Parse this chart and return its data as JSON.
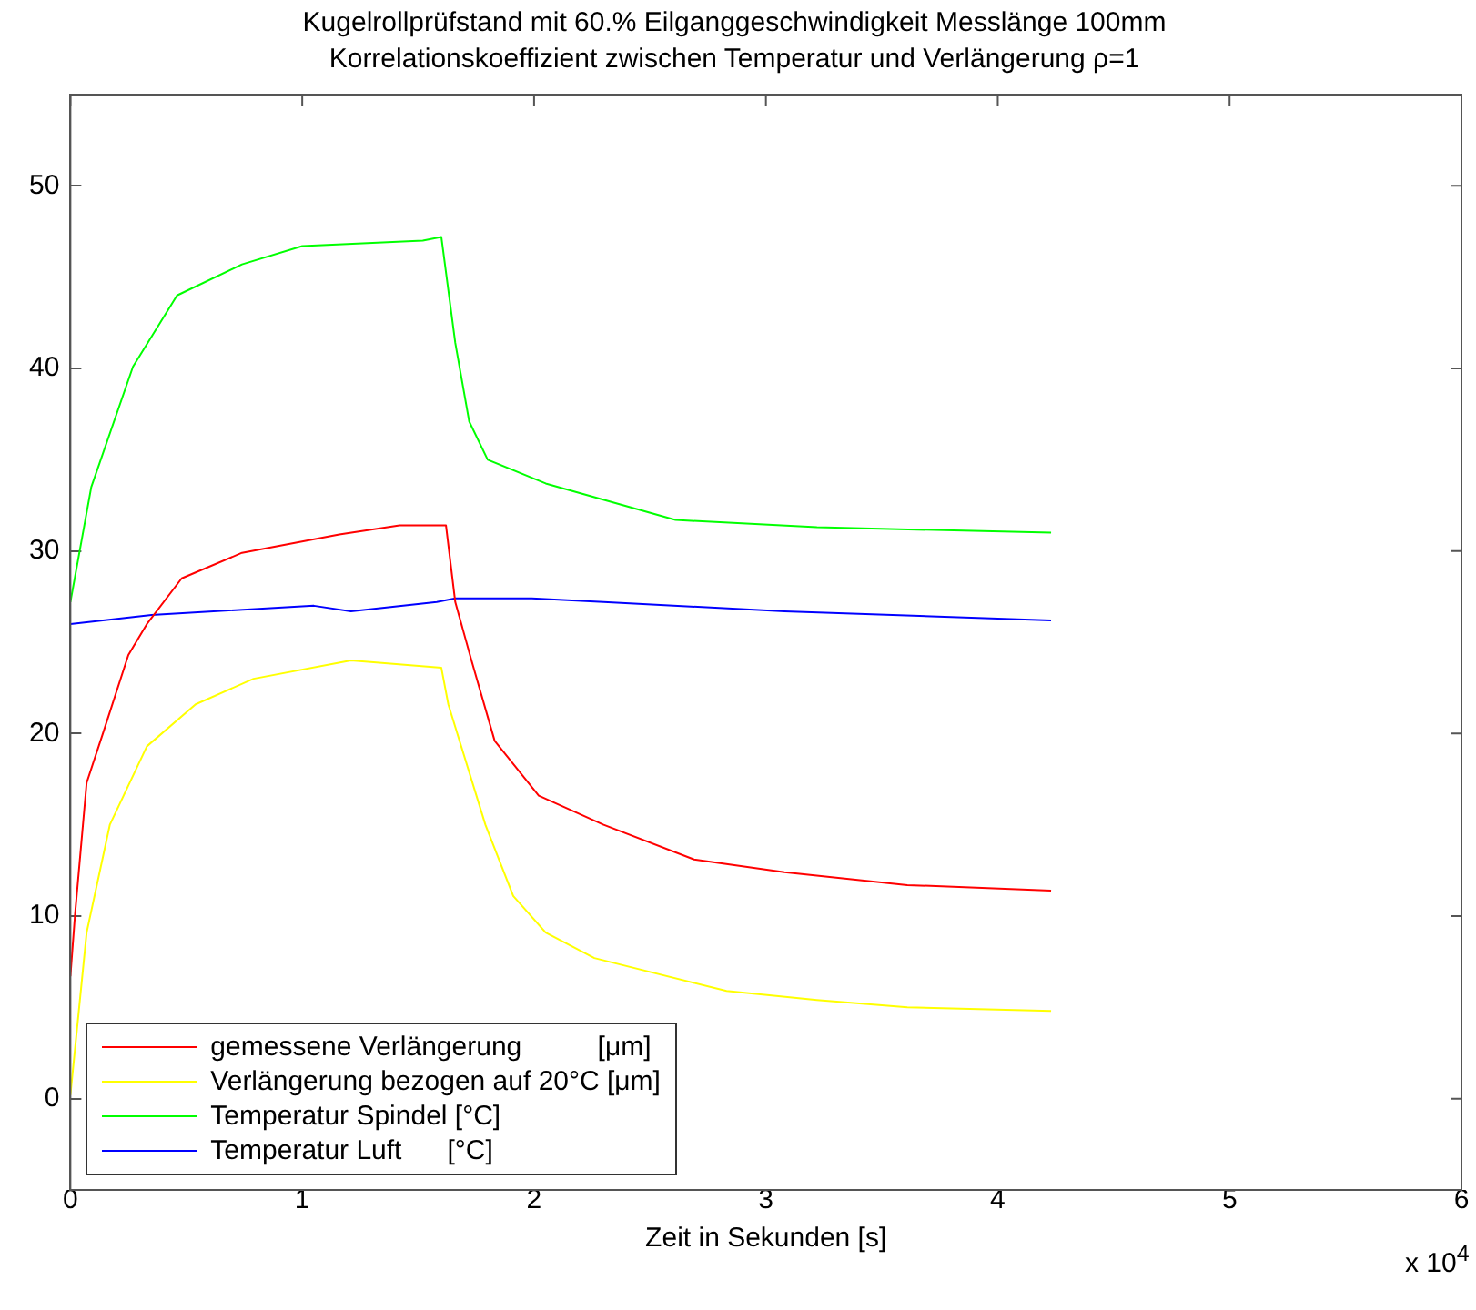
{
  "chart_data": {
    "type": "line",
    "title": "Kugelrollprüfstand mit 60.% Eilganggeschwindigkeit Messlänge 100mm",
    "subtitle": "Korrelationskoeffizient zwischen Temperatur und Verlängerung ρ=1",
    "xlabel": "Zeit in Sekunden [s]",
    "annotations": [
      "x 10$^{4}$"
    ],
    "xlim": [
      0,
      6
    ],
    "xticks": [
      0,
      1,
      2,
      3,
      4,
      5,
      6
    ],
    "ylim": [
      -5,
      55
    ],
    "yticks": [
      0,
      10,
      20,
      30,
      40,
      50
    ],
    "grid": false,
    "legend": "bottom left",
    "line_style": "solid",
    "series": [
      {
        "name": "gemessene Verlängerung          [μm]",
        "color": "#ff0000",
        "x": [
          0,
          0.02,
          0.07,
          0.14,
          0.25,
          0.33,
          0.48,
          0.74,
          1.16,
          1.42,
          1.62,
          1.66,
          1.73,
          1.83,
          2.02,
          2.3,
          2.69,
          3.08,
          3.61,
          4.23
        ],
        "values": [
          6.7,
          10.1,
          17.3,
          20,
          24.3,
          26,
          28.5,
          29.9,
          30.9,
          31.4,
          31.4,
          27.2,
          24,
          19.6,
          16.6,
          15,
          13.1,
          12.4,
          11.7,
          11.4
        ]
      },
      {
        "name": "Verlängerung bezogen auf 20°C [μm]",
        "color": "#ffff00",
        "x": [
          0,
          0.07,
          0.17,
          0.33,
          0.54,
          0.79,
          1.21,
          1.6,
          1.63,
          1.79,
          1.91,
          2.05,
          2.26,
          2.83,
          3.22,
          3.61,
          4.23
        ],
        "values": [
          0.2,
          9.1,
          15,
          19.3,
          21.6,
          23,
          24,
          23.6,
          21.6,
          15,
          11.1,
          9.1,
          7.7,
          5.9,
          5.4,
          5,
          4.8
        ]
      },
      {
        "name": "Temperatur Spindel [°C]",
        "color": "#00ff00",
        "x": [
          0,
          0.09,
          0.27,
          0.46,
          0.74,
          1,
          1.52,
          1.6,
          1.66,
          1.72,
          1.8,
          2.05,
          2.61,
          3.22,
          4.23
        ],
        "values": [
          27.2,
          33.5,
          40.1,
          44,
          45.7,
          46.7,
          47,
          47.2,
          41.4,
          37.1,
          35,
          33.7,
          31.7,
          31.3,
          31
        ]
      },
      {
        "name": "Temperatur Luft      [°C]",
        "color": "#0000ff",
        "x": [
          0,
          0.35,
          1.05,
          1.21,
          1.58,
          1.66,
          1.99,
          2.3,
          3.08,
          4.23
        ],
        "values": [
          26,
          26.5,
          27,
          26.7,
          27.2,
          27.4,
          27.4,
          27.2,
          26.7,
          26.2
        ]
      }
    ]
  }
}
